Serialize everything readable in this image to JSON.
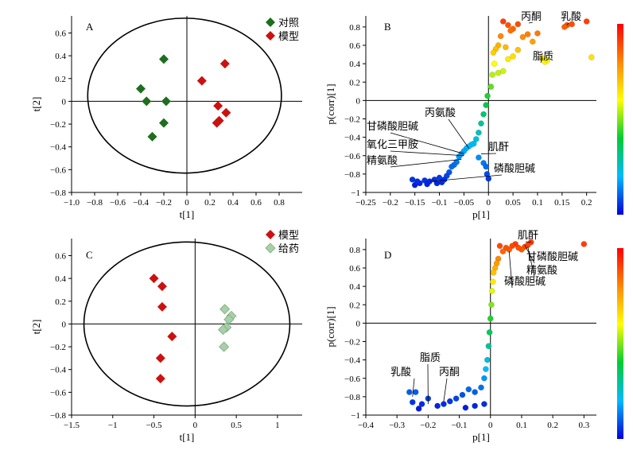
{
  "colors": {
    "control": "#1e6e1e",
    "model": "#cc1111",
    "drug": "#a8d0a8",
    "drug_edge": "#7faa7f",
    "colorbar": [
      "#ff0000",
      "#ff8800",
      "#ffff00",
      "#00cc33",
      "#00bbff",
      "#0000dd"
    ]
  },
  "chart_data": [
    {
      "id": "A",
      "type": "scatter",
      "panel_label": "A",
      "xlabel": "t[1]",
      "ylabel": "t[2]",
      "xlim": [
        -1.0,
        1.0
      ],
      "ylim": [
        -0.8,
        0.75
      ],
      "xticks": [
        -1.0,
        -0.8,
        -0.6,
        -0.4,
        -0.2,
        0,
        0.2,
        0.4,
        0.6,
        0.8
      ],
      "xtick_labels": [
        "−1.0",
        "−0.8",
        "−0.6",
        "−0.4",
        "−0.2",
        "0",
        "0.2",
        "0.4",
        "0.6",
        "0.8"
      ],
      "yticks": [
        -0.8,
        -0.6,
        -0.4,
        -0.2,
        0,
        0.2,
        0.4,
        0.6
      ],
      "ytick_labels": [
        "−0.8",
        "−0.6",
        "−0.4",
        "−0.2",
        "0",
        "0.2",
        "0.4",
        "0.6"
      ],
      "ellipse": {
        "cx": -0.02,
        "cy": 0.05,
        "rx": 0.84,
        "ry": 0.68
      },
      "legend_position": "top-right",
      "series": [
        {
          "name": "对照",
          "marker": "diamond",
          "color": "#1e6e1e",
          "points": [
            [
              -0.2,
              0.37
            ],
            [
              -0.4,
              0.11
            ],
            [
              -0.35,
              0.0
            ],
            [
              -0.18,
              0.0
            ],
            [
              -0.2,
              -0.19
            ],
            [
              -0.3,
              -0.31
            ]
          ]
        },
        {
          "name": "模型",
          "marker": "diamond",
          "color": "#cc1111",
          "points": [
            [
              0.33,
              0.33
            ],
            [
              0.13,
              0.18
            ],
            [
              0.27,
              -0.04
            ],
            [
              0.34,
              -0.1
            ],
            [
              0.28,
              -0.17
            ],
            [
              0.26,
              -0.19
            ]
          ]
        }
      ]
    },
    {
      "id": "B",
      "type": "scatter",
      "panel_label": "B",
      "xlabel": "p[1]",
      "ylabel": "p(corr)[1]",
      "xlim": [
        -0.25,
        0.22
      ],
      "ylim": [
        -1.0,
        0.92
      ],
      "xticks": [
        -0.25,
        -0.2,
        -0.15,
        -0.1,
        -0.05,
        0,
        0.05,
        0.1,
        0.15,
        0.2
      ],
      "xtick_labels": [
        "−0.25",
        "−0.2",
        "−0.15",
        "−0.1",
        "−0.05",
        "0",
        "0.05",
        "0.1",
        "0.15",
        "0.2"
      ],
      "yticks": [
        -1.0,
        -0.8,
        -0.6,
        -0.4,
        -0.2,
        0,
        0.2,
        0.4,
        0.6,
        0.8
      ],
      "ytick_labels": [
        "−1",
        "−0.8",
        "−0.6",
        "−0.4",
        "−0.2",
        "0",
        "0.2",
        "0.4",
        "0.6",
        "0.8"
      ],
      "color_by": "p(corr)",
      "points": [
        [
          0.2,
          0.86
        ],
        [
          0.21,
          0.47
        ],
        [
          0.16,
          0.82
        ],
        [
          0.17,
          0.83
        ],
        [
          0.155,
          0.8
        ],
        [
          0.11,
          0.46
        ],
        [
          0.115,
          0.42
        ],
        [
          0.12,
          0.44
        ],
        [
          0.09,
          0.64
        ],
        [
          0.1,
          0.73
        ],
        [
          0.08,
          0.72
        ],
        [
          0.07,
          0.69
        ],
        [
          0.06,
          0.83
        ],
        [
          0.05,
          0.78
        ],
        [
          0.04,
          0.82
        ],
        [
          0.045,
          0.76
        ],
        [
          0.03,
          0.86
        ],
        [
          0.025,
          0.7
        ],
        [
          0.035,
          0.58
        ],
        [
          0.02,
          0.6
        ],
        [
          0.015,
          0.56
        ],
        [
          0.01,
          0.52
        ],
        [
          0.012,
          0.4
        ],
        [
          0.02,
          0.3
        ],
        [
          0.03,
          0.32
        ],
        [
          0.04,
          0.45
        ],
        [
          0.05,
          0.48
        ],
        [
          0.06,
          0.55
        ],
        [
          0.008,
          0.28
        ],
        [
          0.005,
          0.15
        ],
        [
          -0.002,
          0.05
        ],
        [
          -0.005,
          -0.05
        ],
        [
          -0.01,
          -0.15
        ],
        [
          -0.015,
          -0.25
        ],
        [
          -0.02,
          -0.35
        ],
        [
          -0.025,
          -0.42
        ],
        [
          -0.03,
          -0.47
        ],
        [
          -0.035,
          -0.48
        ],
        [
          -0.04,
          -0.5
        ],
        [
          -0.045,
          -0.52
        ],
        [
          -0.05,
          -0.55
        ],
        [
          -0.055,
          -0.58
        ],
        [
          -0.06,
          -0.61
        ],
        [
          -0.065,
          -0.67
        ],
        [
          -0.07,
          -0.7
        ],
        [
          -0.075,
          -0.72
        ],
        [
          -0.08,
          -0.78
        ],
        [
          -0.085,
          -0.82
        ],
        [
          -0.09,
          -0.86
        ],
        [
          -0.1,
          -0.84
        ],
        [
          -0.11,
          -0.86
        ],
        [
          -0.12,
          -0.88
        ],
        [
          -0.13,
          -0.87
        ],
        [
          -0.14,
          -0.9
        ],
        [
          -0.15,
          -0.92
        ],
        [
          -0.155,
          -0.86
        ],
        [
          -0.145,
          -0.88
        ],
        [
          -0.125,
          -0.91
        ],
        [
          -0.105,
          -0.9
        ],
        [
          -0.095,
          -0.89
        ],
        [
          -0.02,
          -0.62
        ],
        [
          -0.01,
          -0.68
        ],
        [
          -0.005,
          -0.72
        ],
        [
          -0.003,
          -0.8
        ],
        [
          0.0,
          -0.85
        ]
      ],
      "annotations": [
        {
          "text": "丙酮",
          "anchor": [
            0.09,
            0.85
          ]
        },
        {
          "text": "乳酸",
          "anchor": [
            0.16,
            0.82
          ]
        },
        {
          "text": "脂质",
          "anchor": [
            0.11,
            0.46
          ]
        },
        {
          "text": "丙氨酸",
          "anchor": [
            -0.04,
            -0.52
          ]
        },
        {
          "text": "甘磷酸胆碱",
          "anchor": [
            -0.05,
            -0.58
          ]
        },
        {
          "text": "氧化三甲胺",
          "anchor": [
            -0.05,
            -0.6
          ]
        },
        {
          "text": "精氨酸",
          "anchor": [
            -0.055,
            -0.64
          ]
        },
        {
          "text": "肌酐",
          "anchor": [
            -0.015,
            -0.58
          ]
        },
        {
          "text": "磷酸胆碱",
          "anchor": [
            -0.12,
            -0.88
          ]
        }
      ]
    },
    {
      "id": "C",
      "type": "scatter",
      "panel_label": "C",
      "xlabel": "t[1]",
      "ylabel": "t[2]",
      "xlim": [
        -1.5,
        1.3
      ],
      "ylim": [
        -0.8,
        0.75
      ],
      "xticks": [
        -1.5,
        -1.0,
        -0.5,
        0,
        0.5,
        1.0
      ],
      "xtick_labels": [
        "−1.5",
        "−1",
        "−0.5",
        "0",
        "0.5",
        "1"
      ],
      "yticks": [
        -0.8,
        -0.6,
        -0.4,
        -0.2,
        0,
        0.2,
        0.4,
        0.6
      ],
      "ytick_labels": [
        "−0.8",
        "−0.6",
        "−0.4",
        "−0.2",
        "0",
        "0.2",
        "0.4",
        "0.6"
      ],
      "ellipse": {
        "cx": -0.1,
        "cy": 0.0,
        "rx": 1.25,
        "ry": 0.72
      },
      "legend_position": "top-right",
      "series": [
        {
          "name": "模型",
          "marker": "diamond",
          "color": "#cc1111",
          "points": [
            [
              -0.5,
              0.4
            ],
            [
              -0.4,
              0.33
            ],
            [
              -0.4,
              0.15
            ],
            [
              -0.28,
              -0.11
            ],
            [
              -0.42,
              -0.3
            ],
            [
              -0.42,
              -0.48
            ]
          ]
        },
        {
          "name": "给药",
          "marker": "diamond",
          "color": "#a8d0a8",
          "points": [
            [
              0.36,
              0.13
            ],
            [
              0.44,
              0.07
            ],
            [
              0.41,
              0.04
            ],
            [
              0.38,
              -0.03
            ],
            [
              0.34,
              -0.05
            ],
            [
              0.35,
              -0.2
            ]
          ]
        }
      ]
    },
    {
      "id": "D",
      "type": "scatter",
      "panel_label": "D",
      "xlabel": "p[1]",
      "ylabel": "p(corr)[1]",
      "xlim": [
        -0.4,
        0.34
      ],
      "ylim": [
        -1.0,
        0.92
      ],
      "xticks": [
        -0.4,
        -0.3,
        -0.2,
        -0.1,
        0,
        0.1,
        0.2,
        0.3
      ],
      "xtick_labels": [
        "−0.4",
        "−0.3",
        "−0.2",
        "−0.1",
        "0",
        "0.1",
        "0.2",
        "0.3"
      ],
      "yticks": [
        -1.0,
        -0.8,
        -0.6,
        -0.4,
        -0.2,
        0,
        0.2,
        0.4,
        0.6,
        0.8
      ],
      "ytick_labels": [
        "−1",
        "−0.8",
        "−0.6",
        "−0.4",
        "−0.2",
        "0",
        "0.2",
        "0.4",
        "0.6",
        "0.8"
      ],
      "color_by": "p(corr)",
      "points": [
        [
          0.3,
          0.86
        ],
        [
          0.13,
          0.88
        ],
        [
          0.12,
          0.85
        ],
        [
          0.11,
          0.83
        ],
        [
          0.1,
          0.8
        ],
        [
          0.09,
          0.82
        ],
        [
          0.08,
          0.86
        ],
        [
          0.07,
          0.84
        ],
        [
          0.06,
          0.8
        ],
        [
          0.05,
          0.82
        ],
        [
          0.04,
          0.78
        ],
        [
          0.03,
          0.84
        ],
        [
          0.025,
          0.7
        ],
        [
          0.02,
          0.65
        ],
        [
          0.015,
          0.6
        ],
        [
          0.01,
          0.55
        ],
        [
          0.008,
          0.45
        ],
        [
          0.005,
          0.35
        ],
        [
          0.003,
          0.2
        ],
        [
          0.0,
          0.05
        ],
        [
          -0.003,
          -0.1
        ],
        [
          -0.006,
          -0.25
        ],
        [
          -0.01,
          -0.4
        ],
        [
          -0.015,
          -0.5
        ],
        [
          -0.02,
          -0.6
        ],
        [
          -0.03,
          -0.7
        ],
        [
          -0.05,
          -0.75
        ],
        [
          -0.07,
          -0.72
        ],
        [
          -0.09,
          -0.78
        ],
        [
          -0.11,
          -0.82
        ],
        [
          -0.13,
          -0.85
        ],
        [
          -0.15,
          -0.88
        ],
        [
          -0.17,
          -0.9
        ],
        [
          -0.2,
          -0.82
        ],
        [
          -0.22,
          -0.88
        ],
        [
          -0.24,
          -0.75
        ],
        [
          -0.26,
          -0.75
        ],
        [
          -0.23,
          -0.93
        ],
        [
          -0.25,
          -0.86
        ],
        [
          -0.05,
          -0.9
        ],
        [
          -0.08,
          -0.92
        ],
        [
          -0.02,
          -0.88
        ]
      ],
      "annotations": [
        {
          "text": "肌酐",
          "anchor": [
            0.13,
            0.88
          ]
        },
        {
          "text": "甘磷酸胆碱",
          "anchor": [
            0.11,
            0.85
          ]
        },
        {
          "text": "精氨酸",
          "anchor": [
            0.12,
            0.83
          ]
        },
        {
          "text": "磷酸胆碱",
          "anchor": [
            0.06,
            0.78
          ]
        },
        {
          "text": "乳酸",
          "anchor": [
            -0.25,
            -0.8
          ]
        },
        {
          "text": "脂质",
          "anchor": [
            -0.2,
            -0.88
          ]
        },
        {
          "text": "丙酮",
          "anchor": [
            -0.15,
            -0.85
          ]
        }
      ]
    }
  ]
}
